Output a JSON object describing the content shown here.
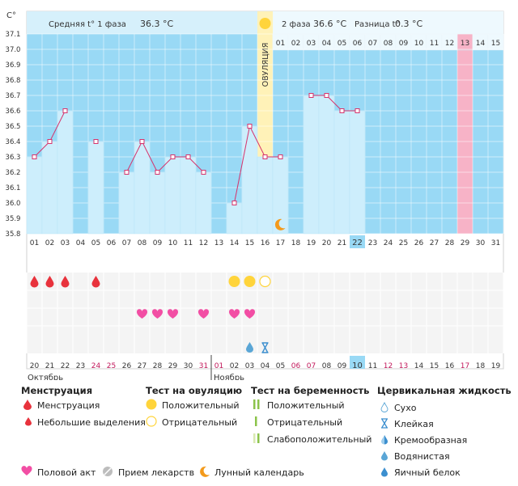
{
  "chart_data": {
    "type": "line",
    "unit_label": "C°",
    "y_ticks": [
      "37.1",
      "37.0",
      "36.9",
      "36.8",
      "36.7",
      "36.6",
      "36.5",
      "36.4",
      "36.3",
      "36.2",
      "36.1",
      "36.0",
      "35.9",
      "35.8"
    ],
    "ylim": [
      35.8,
      37.1
    ],
    "phase1_label": "Средняя t° 1 фаза",
    "phase1_value": "36.3 °С",
    "phase2_label": "2 фаза",
    "phase2_value": "36.6 °С",
    "diff_label": "Разница t°",
    "diff_value": "0.3 °С",
    "ovulation_label": "ОВУЛЯЦИЯ",
    "cycle_days": [
      "01",
      "02",
      "03",
      "04",
      "05",
      "06",
      "07",
      "08",
      "09",
      "10",
      "11",
      "12",
      "13",
      "14",
      "15"
    ],
    "dates_top": [
      "01",
      "02",
      "03",
      "04",
      "05",
      "06",
      "07",
      "08",
      "09",
      "10",
      "11",
      "12",
      "13",
      "14",
      "15",
      "16",
      "17",
      "18",
      "19",
      "20",
      "21",
      "22",
      "23",
      "24",
      "25",
      "26",
      "27",
      "28",
      "29",
      "30",
      "31"
    ],
    "dates_bottom": [
      "20",
      "21",
      "22",
      "23",
      "24",
      "25",
      "26",
      "27",
      "28",
      "29",
      "30",
      "31",
      "01",
      "02",
      "03",
      "04",
      "05",
      "06",
      "07",
      "08",
      "09",
      "10",
      "11",
      "12",
      "13",
      "14",
      "15",
      "16",
      "17",
      "18",
      "19"
    ],
    "bottom_red": [
      4,
      5,
      11,
      12,
      17,
      18,
      23,
      24,
      28
    ],
    "month_oct": "Октябрь",
    "month_nov": "Ноябрь",
    "temperatures": [
      36.3,
      36.4,
      36.6,
      null,
      36.4,
      null,
      36.2,
      36.4,
      36.2,
      36.3,
      36.3,
      36.2,
      null,
      36.0,
      36.5,
      36.3,
      36.3,
      null,
      36.7,
      36.7,
      36.6,
      36.6,
      null,
      null,
      null,
      null,
      null,
      null,
      null,
      null,
      null
    ],
    "dashed_segments": [
      [
        3,
        5
      ],
      [
        5,
        7
      ],
      [
        17,
        19
      ]
    ],
    "ovulation_day_index": 15,
    "today_index": 21,
    "pink_index": 28,
    "menstruation_days": [
      0,
      1,
      2,
      4
    ],
    "ovulation_test_positive": [
      13,
      14
    ],
    "ovulation_test_negative": [
      15
    ],
    "sex_days": [
      7,
      8,
      9,
      11,
      13,
      14
    ],
    "cervical_watery": [
      14
    ],
    "cervical_sticky": [
      15
    ],
    "moon_day": 16,
    "colors": {
      "bg": "#99d9f5",
      "bar": "#cdeefc",
      "line": "#d6336c",
      "ovulation": "#fff2b8",
      "pink": "#f7b3c7",
      "drop": "#e8323c",
      "heart": "#f24ea4",
      "yellow": "#ffd43b",
      "moon": "#f39a1c"
    }
  },
  "legend": {
    "menstruation": {
      "title": "Менструация",
      "items": [
        "Менструация",
        "Небольшие выделения"
      ]
    },
    "ovulation_test": {
      "title": "Тест на овуляцию",
      "items": [
        "Положительный",
        "Отрицательный"
      ]
    },
    "pregnancy_test": {
      "title": "Тест на беременность",
      "items": [
        "Положительный",
        "Отрицательный",
        "Слабоположительный"
      ]
    },
    "cervical": {
      "title": "Цервикальная жидкость",
      "items": [
        "Сухо",
        "Клейкая",
        "Кремообразная",
        "Водянистая",
        "Яичный белок"
      ]
    },
    "bottom": [
      "Половой акт",
      "Прием лекарств",
      "Лунный календарь"
    ]
  }
}
